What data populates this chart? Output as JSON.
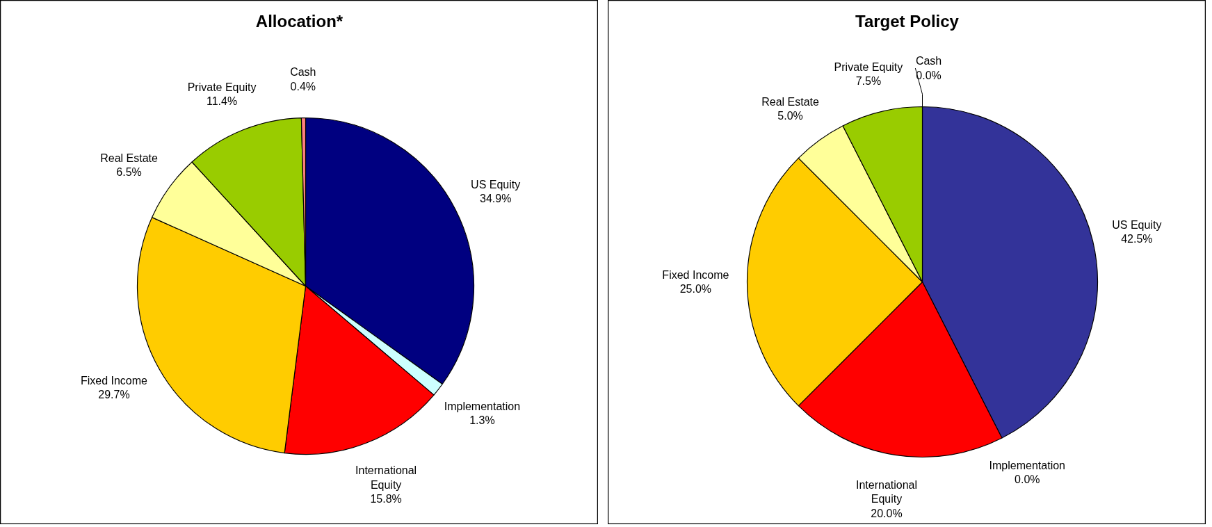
{
  "chart_data": [
    {
      "type": "pie",
      "title": "Allocation*",
      "categories": [
        "US Equity",
        "Implementation",
        "International Equity",
        "Fixed Income",
        "Real Estate",
        "Private Equity",
        "Cash"
      ],
      "values": [
        34.9,
        1.3,
        15.8,
        29.7,
        6.5,
        11.4,
        0.4
      ],
      "colors": [
        "#000080",
        "#ccffff",
        "#ff0000",
        "#ffcc00",
        "#ffff99",
        "#99cc00",
        "#ff8080"
      ],
      "value_labels": [
        "34.9%",
        "1.3%",
        "15.8%",
        "29.7%",
        "6.5%",
        "11.4%",
        "0.4%"
      ]
    },
    {
      "type": "pie",
      "title": "Target Policy",
      "categories": [
        "US Equity",
        "Implementation",
        "International Equity",
        "Fixed Income",
        "Real Estate",
        "Private Equity",
        "Cash"
      ],
      "values": [
        42.5,
        0.0,
        20.0,
        25.0,
        5.0,
        7.5,
        0.0
      ],
      "colors": [
        "#333399",
        "#ccffff",
        "#ff0000",
        "#ffcc00",
        "#ffff99",
        "#99cc00",
        "#ff8080"
      ],
      "value_labels": [
        "42.5%",
        "0.0%",
        "20.0%",
        "25.0%",
        "5.0%",
        "7.5%",
        "0.0%"
      ]
    }
  ]
}
